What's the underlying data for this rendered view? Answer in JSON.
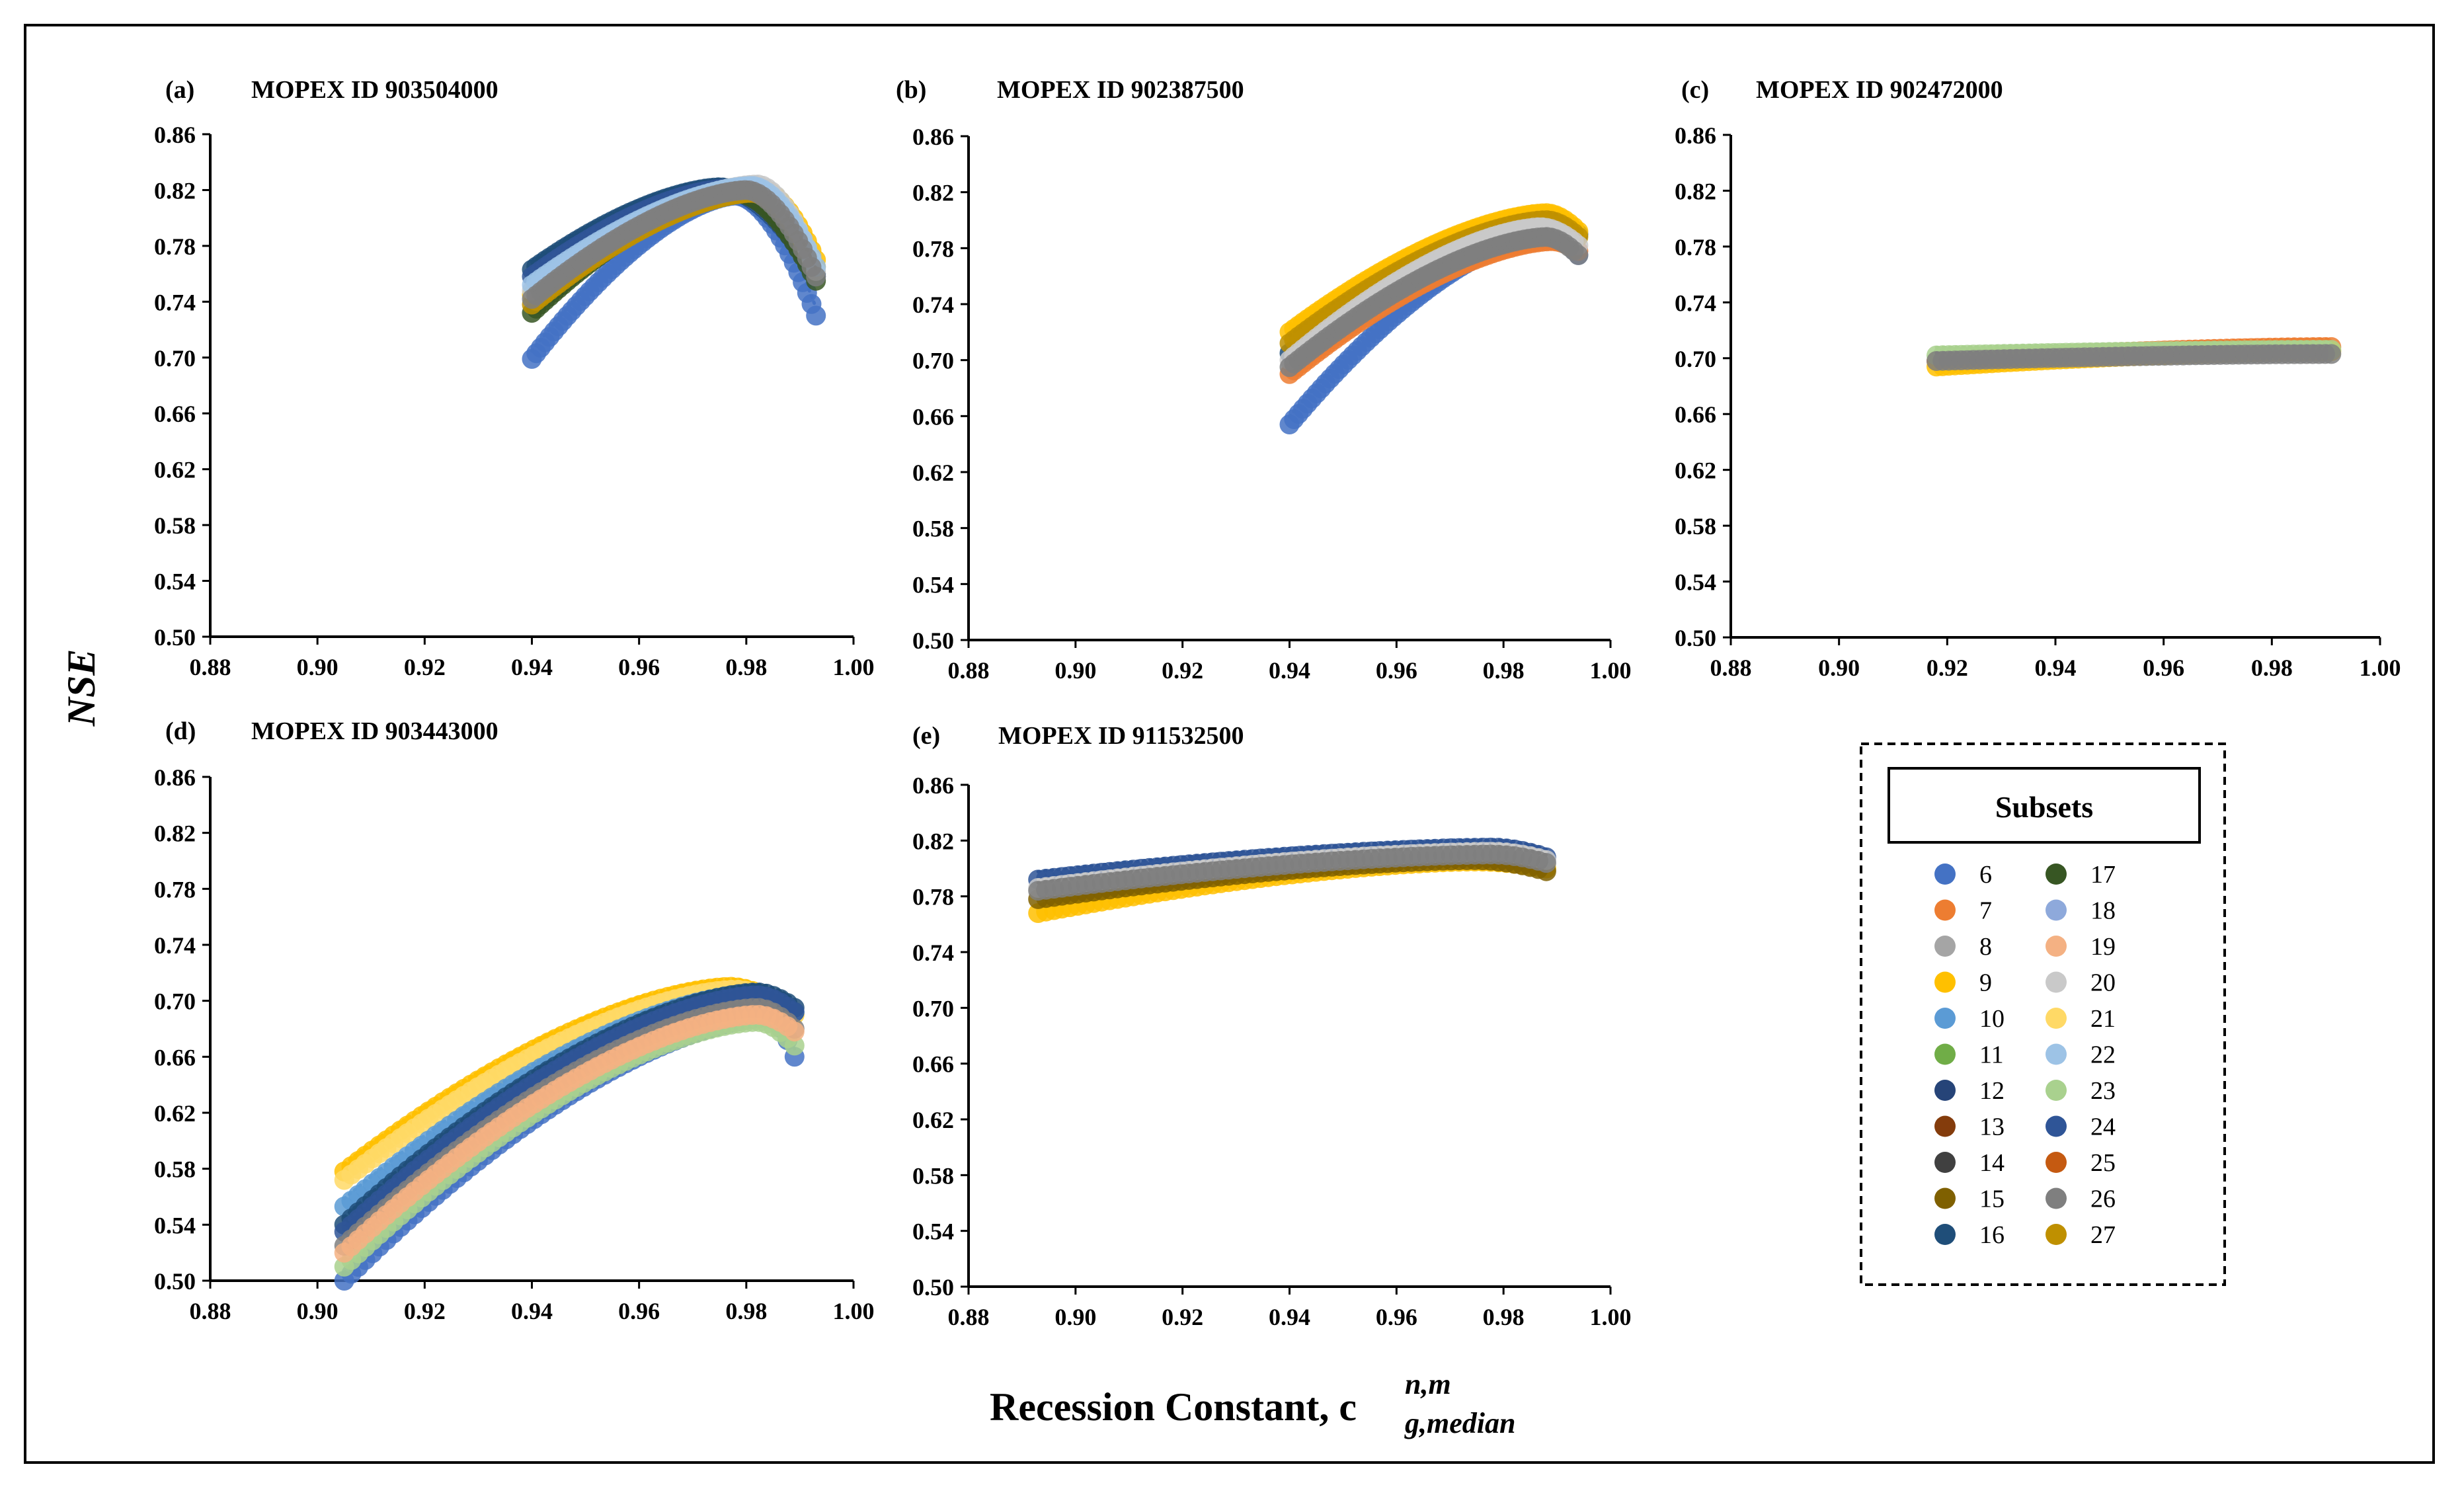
{
  "shared": {
    "ylabel": "NSE",
    "xlabel_main": "Recession Constant, c",
    "xlabel_sup": "n,m",
    "xlabel_sub": "g,median"
  },
  "legend": {
    "title": "Subsets",
    "items": [
      {
        "label": "6",
        "color": "#4472C4"
      },
      {
        "label": "7",
        "color": "#ED7D31"
      },
      {
        "label": "8",
        "color": "#A5A5A5"
      },
      {
        "label": "9",
        "color": "#FFC000"
      },
      {
        "label": "10",
        "color": "#5B9BD5"
      },
      {
        "label": "11",
        "color": "#70AD47"
      },
      {
        "label": "12",
        "color": "#264478"
      },
      {
        "label": "13",
        "color": "#843C0C"
      },
      {
        "label": "14",
        "color": "#404040"
      },
      {
        "label": "15",
        "color": "#7F6000"
      },
      {
        "label": "16",
        "color": "#1F4E79"
      },
      {
        "label": "17",
        "color": "#375623"
      },
      {
        "label": "18",
        "color": "#8EA9DB"
      },
      {
        "label": "19",
        "color": "#F4B183"
      },
      {
        "label": "20",
        "color": "#C9C9C9"
      },
      {
        "label": "21",
        "color": "#FFD966"
      },
      {
        "label": "22",
        "color": "#9DC3E6"
      },
      {
        "label": "23",
        "color": "#A9D18E"
      },
      {
        "label": "24",
        "color": "#2F5597"
      },
      {
        "label": "25",
        "color": "#C55A11"
      },
      {
        "label": "26",
        "color": "#7F7F7F"
      },
      {
        "label": "27",
        "color": "#BF9000"
      }
    ]
  },
  "chart_data": [
    {
      "panel": "(a)",
      "title": "MOPEX ID 903504000",
      "type": "scatter",
      "xlim": [
        0.88,
        1.0
      ],
      "ylim": [
        0.5,
        0.86
      ],
      "xticks": [
        "0.88",
        "0.90",
        "0.92",
        "0.94",
        "0.96",
        "0.98",
        "1.00"
      ],
      "yticks": [
        "0.50",
        "0.54",
        "0.58",
        "0.62",
        "0.66",
        "0.70",
        "0.74",
        "0.78",
        "0.82",
        "0.86"
      ],
      "series_x_range": [
        0.94,
        0.993
      ],
      "series": [
        {
          "name": "6",
          "y_start": 0.699,
          "x_peak": 0.978,
          "y_peak": 0.816,
          "y_end": 0.73
        },
        {
          "name": "16",
          "y_start": 0.763,
          "x_peak": 0.975,
          "y_peak": 0.822,
          "y_end": 0.76
        },
        {
          "name": "24",
          "y_start": 0.758,
          "x_peak": 0.976,
          "y_peak": 0.821,
          "y_end": 0.758
        },
        {
          "name": "17",
          "y_start": 0.732,
          "x_peak": 0.978,
          "y_peak": 0.818,
          "y_end": 0.755
        },
        {
          "name": "9",
          "y_start": 0.745,
          "x_peak": 0.982,
          "y_peak": 0.822,
          "y_end": 0.77
        },
        {
          "name": "27",
          "y_start": 0.738,
          "x_peak": 0.981,
          "y_peak": 0.818,
          "y_end": 0.765
        },
        {
          "name": "20",
          "y_start": 0.748,
          "x_peak": 0.982,
          "y_peak": 0.824,
          "y_end": 0.762
        },
        {
          "name": "22",
          "y_start": 0.752,
          "x_peak": 0.981,
          "y_peak": 0.823,
          "y_end": 0.765
        },
        {
          "name": "26",
          "y_start": 0.742,
          "x_peak": 0.98,
          "y_peak": 0.82,
          "y_end": 0.758
        }
      ]
    },
    {
      "panel": "(b)",
      "title": "MOPEX ID 902387500",
      "type": "scatter",
      "xlim": [
        0.88,
        1.0
      ],
      "ylim": [
        0.5,
        0.86
      ],
      "xticks": [
        "0.88",
        "0.90",
        "0.92",
        "0.94",
        "0.96",
        "0.98",
        "1.00"
      ],
      "yticks": [
        "0.50",
        "0.54",
        "0.58",
        "0.62",
        "0.66",
        "0.70",
        "0.74",
        "0.78",
        "0.82",
        "0.86"
      ],
      "series_x_range": [
        0.94,
        0.994
      ],
      "series": [
        {
          "name": "6",
          "y_start": 0.654,
          "x_peak": 0.988,
          "y_peak": 0.79,
          "y_end": 0.775
        },
        {
          "name": "7",
          "y_start": 0.69,
          "x_peak": 0.989,
          "y_peak": 0.785,
          "y_end": 0.778
        },
        {
          "name": "16",
          "y_start": 0.705,
          "x_peak": 0.987,
          "y_peak": 0.802,
          "y_end": 0.79
        },
        {
          "name": "9",
          "y_start": 0.72,
          "x_peak": 0.988,
          "y_peak": 0.805,
          "y_end": 0.792
        },
        {
          "name": "27",
          "y_start": 0.712,
          "x_peak": 0.988,
          "y_peak": 0.8,
          "y_end": 0.788
        },
        {
          "name": "20",
          "y_start": 0.7,
          "x_peak": 0.987,
          "y_peak": 0.795,
          "y_end": 0.782
        },
        {
          "name": "26",
          "y_start": 0.695,
          "x_peak": 0.988,
          "y_peak": 0.788,
          "y_end": 0.775
        }
      ]
    },
    {
      "panel": "(c)",
      "title": "MOPEX ID 902472000",
      "type": "scatter",
      "xlim": [
        0.88,
        1.0
      ],
      "ylim": [
        0.5,
        0.86
      ],
      "xticks": [
        "0.88",
        "0.90",
        "0.92",
        "0.94",
        "0.96",
        "0.98",
        "1.00"
      ],
      "yticks": [
        "0.50",
        "0.54",
        "0.58",
        "0.62",
        "0.66",
        "0.70",
        "0.74",
        "0.78",
        "0.82",
        "0.86"
      ],
      "series_x_range": [
        0.918,
        0.991
      ],
      "series": [
        {
          "name": "7",
          "y_start": 0.698,
          "x_peak": 0.99,
          "y_peak": 0.708,
          "y_end": 0.708
        },
        {
          "name": "9",
          "y_start": 0.694,
          "x_peak": 0.99,
          "y_peak": 0.705,
          "y_end": 0.705
        },
        {
          "name": "23",
          "y_start": 0.702,
          "x_peak": 0.99,
          "y_peak": 0.706,
          "y_end": 0.706
        },
        {
          "name": "26",
          "y_start": 0.698,
          "x_peak": 0.99,
          "y_peak": 0.703,
          "y_end": 0.703
        }
      ]
    },
    {
      "panel": "(d)",
      "title": "MOPEX ID 903443000",
      "type": "scatter",
      "xlim": [
        0.88,
        1.0
      ],
      "ylim": [
        0.5,
        0.86
      ],
      "xticks": [
        "0.88",
        "0.90",
        "0.92",
        "0.94",
        "0.96",
        "0.98",
        "1.00"
      ],
      "yticks": [
        "0.50",
        "0.54",
        "0.58",
        "0.62",
        "0.66",
        "0.70",
        "0.74",
        "0.78",
        "0.82",
        "0.86"
      ],
      "series_x_range": [
        0.905,
        0.989
      ],
      "series": [
        {
          "name": "6",
          "y_start": 0.5,
          "x_peak": 0.984,
          "y_peak": 0.688,
          "y_end": 0.66
        },
        {
          "name": "23",
          "y_start": 0.51,
          "x_peak": 0.982,
          "y_peak": 0.685,
          "y_end": 0.668
        },
        {
          "name": "9",
          "y_start": 0.578,
          "x_peak": 0.977,
          "y_peak": 0.71,
          "y_end": 0.69
        },
        {
          "name": "21",
          "y_start": 0.572,
          "x_peak": 0.978,
          "y_peak": 0.708,
          "y_end": 0.69
        },
        {
          "name": "10",
          "y_start": 0.553,
          "x_peak": 0.981,
          "y_peak": 0.705,
          "y_end": 0.692
        },
        {
          "name": "16",
          "y_start": 0.54,
          "x_peak": 0.982,
          "y_peak": 0.706,
          "y_end": 0.695
        },
        {
          "name": "24",
          "y_start": 0.535,
          "x_peak": 0.982,
          "y_peak": 0.704,
          "y_end": 0.692
        },
        {
          "name": "26",
          "y_start": 0.525,
          "x_peak": 0.982,
          "y_peak": 0.695,
          "y_end": 0.68
        },
        {
          "name": "19",
          "y_start": 0.52,
          "x_peak": 0.982,
          "y_peak": 0.69,
          "y_end": 0.678
        }
      ]
    },
    {
      "panel": "(e)",
      "title": "MOPEX ID 911532500",
      "type": "scatter",
      "xlim": [
        0.88,
        1.0
      ],
      "ylim": [
        0.5,
        0.86
      ],
      "xticks": [
        "0.88",
        "0.90",
        "0.92",
        "0.94",
        "0.96",
        "0.98",
        "1.00"
      ],
      "yticks": [
        "0.50",
        "0.54",
        "0.58",
        "0.62",
        "0.66",
        "0.70",
        "0.74",
        "0.78",
        "0.82",
        "0.86"
      ],
      "series_x_range": [
        0.893,
        0.988
      ],
      "series": [
        {
          "name": "9",
          "y_start": 0.768,
          "x_peak": 0.975,
          "y_peak": 0.805,
          "y_end": 0.8
        },
        {
          "name": "15",
          "y_start": 0.778,
          "x_peak": 0.975,
          "y_peak": 0.806,
          "y_end": 0.798
        },
        {
          "name": "24",
          "y_start": 0.792,
          "x_peak": 0.978,
          "y_peak": 0.815,
          "y_end": 0.808
        },
        {
          "name": "20",
          "y_start": 0.786,
          "x_peak": 0.978,
          "y_peak": 0.812,
          "y_end": 0.806
        },
        {
          "name": "26",
          "y_start": 0.784,
          "x_peak": 0.978,
          "y_peak": 0.81,
          "y_end": 0.804
        }
      ]
    }
  ]
}
